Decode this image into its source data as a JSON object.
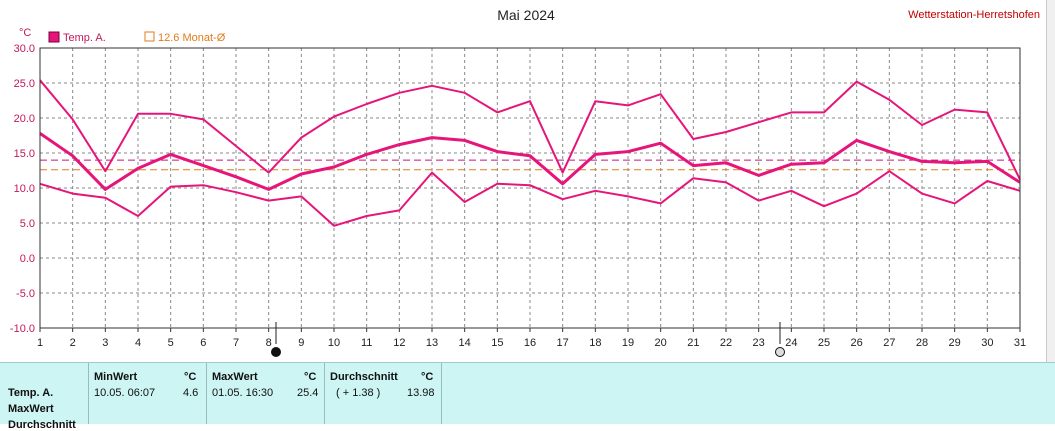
{
  "header": {
    "title": "Mai 2024",
    "station": "Wetterstation-Herretshofen",
    "unit": "°C"
  },
  "legend": {
    "series_label": "Temp. A.",
    "avg_label": "12.6 Monat-Ø"
  },
  "colors": {
    "series": "#e6157a",
    "avg_line": "#e07b1a",
    "mean_line": "#c2187f",
    "grid": "#888888"
  },
  "chart_data": {
    "type": "line",
    "title": "Mai 2024",
    "ylabel": "°C",
    "xlabel": "",
    "x": [
      1,
      2,
      3,
      4,
      5,
      6,
      7,
      8,
      9,
      10,
      11,
      12,
      13,
      14,
      15,
      16,
      17,
      18,
      19,
      20,
      21,
      22,
      23,
      24,
      25,
      26,
      27,
      28,
      29,
      30,
      31
    ],
    "ylim": [
      -10,
      30
    ],
    "yticks": [
      "30.0",
      "25.0",
      "20.0",
      "15.0",
      "10.0",
      "5.0",
      "0.0",
      "-5.0",
      "-10.0"
    ],
    "xticks": [
      "1",
      "2",
      "3",
      "4",
      "5",
      "6",
      "7",
      "8",
      "9",
      "10",
      "11",
      "12",
      "13",
      "14",
      "15",
      "16",
      "17",
      "18",
      "19",
      "20",
      "21",
      "22",
      "23",
      "24",
      "25",
      "26",
      "27",
      "28",
      "29",
      "30",
      "31"
    ],
    "grid": true,
    "legend": "top-left",
    "series": [
      {
        "values": [
          25.4,
          19.8,
          12.4,
          20.6,
          20.6,
          19.8,
          16.0,
          12.2,
          17.2,
          20.2,
          22.0,
          23.6,
          24.6,
          23.6,
          20.8,
          22.4,
          12.2,
          22.4,
          21.8,
          23.4,
          17.0,
          18.0,
          19.4,
          20.8,
          20.8,
          25.2,
          22.6,
          19.0,
          21.2,
          20.8,
          11.2
        ]
      },
      {
        "values": [
          17.8,
          14.6,
          9.8,
          12.8,
          14.8,
          13.2,
          11.6,
          9.8,
          12.0,
          13.0,
          14.8,
          16.2,
          17.2,
          16.8,
          15.2,
          14.6,
          10.6,
          14.8,
          15.2,
          16.4,
          13.2,
          13.6,
          11.8,
          13.4,
          13.6,
          16.8,
          15.2,
          13.8,
          13.6,
          13.8,
          10.8
        ]
      },
      {
        "values": [
          10.6,
          9.2,
          8.6,
          6.0,
          10.2,
          10.4,
          9.4,
          8.2,
          8.8,
          4.6,
          6.0,
          6.8,
          12.2,
          8.0,
          10.6,
          10.4,
          8.4,
          9.6,
          8.8,
          7.8,
          11.4,
          10.8,
          8.2,
          9.6,
          7.4,
          9.2,
          12.4,
          9.2,
          7.8,
          11.0,
          9.6
        ]
      }
    ],
    "reference_lines": [
      {
        "name": "12.6 Monat-Ø",
        "value": 12.6
      },
      {
        "value": 13.98
      }
    ]
  },
  "markers": {
    "new_moon_day": "8",
    "full_moon_day": "23"
  },
  "stats": {
    "row_label": "Temp. A.",
    "row2_label": "MaxWert",
    "row3_label": "Durchschnitt",
    "min": {
      "header": "MinWert",
      "unit": "°C",
      "time": "10.05.  06:07",
      "value": "4.6"
    },
    "max": {
      "header": "MaxWert",
      "unit": "°C",
      "time": "01.05.  16:30",
      "value": "25.4"
    },
    "avg": {
      "header": "Durchschnitt",
      "unit": "°C",
      "delta": "( + 1.38 )",
      "value": "13.98"
    }
  }
}
